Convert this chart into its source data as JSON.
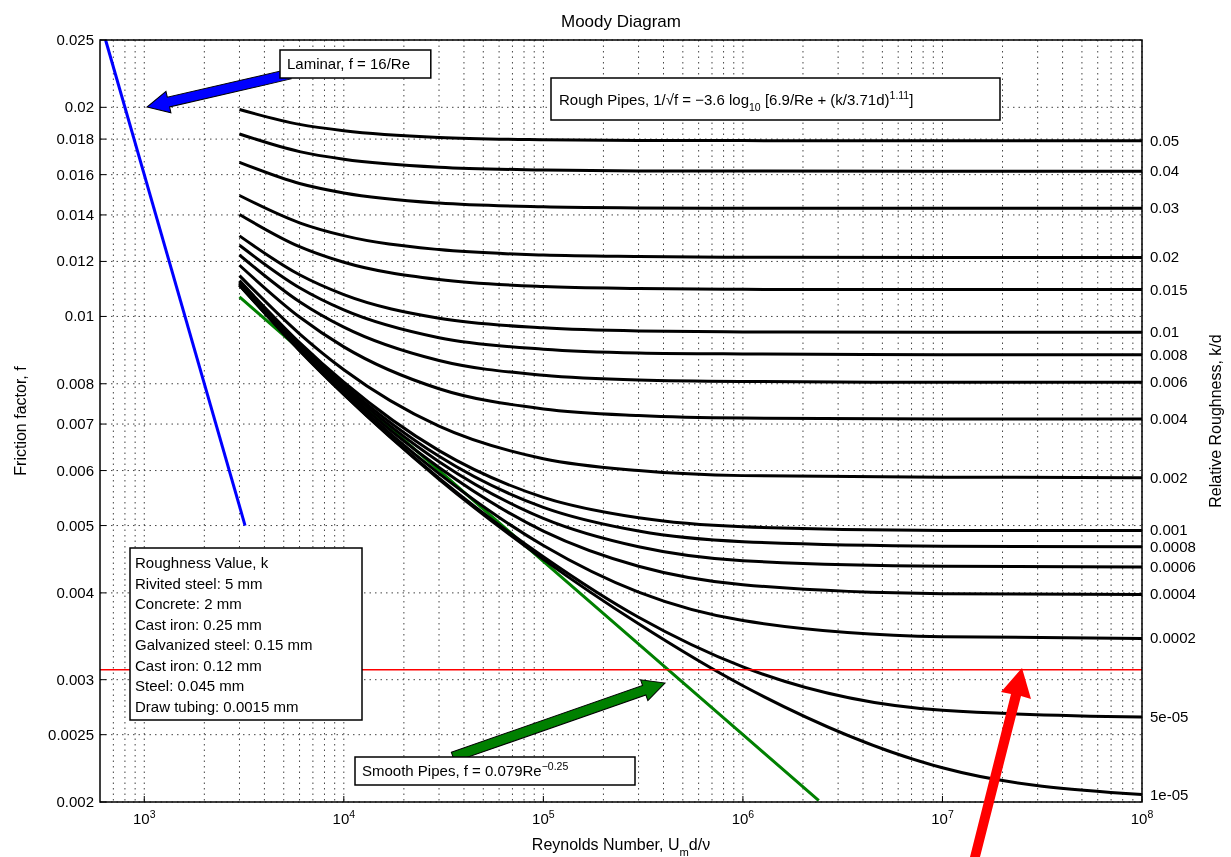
{
  "chart_data": {
    "type": "line",
    "title": "Moody Diagram",
    "xlabel": "Reynolds Number, U$_{m}$d/ν",
    "ylabel": "Friction factor, f",
    "y2label": "Relative Roughness, k/d",
    "log": "xy",
    "grid": true,
    "xlim": [
      600,
      100000000
    ],
    "ylim": [
      0.002,
      0.025
    ],
    "xticks": [
      {
        "value": 1000,
        "label": "10$^{3}$"
      },
      {
        "value": 10000,
        "label": "10$^{4}$"
      },
      {
        "value": 100000,
        "label": "10$^{5}$"
      },
      {
        "value": 1000000,
        "label": "10$^{6}$"
      },
      {
        "value": 10000000,
        "label": "10$^{7}$"
      },
      {
        "value": 100000000,
        "label": "10$^{8}$"
      }
    ],
    "yticks": [
      0.002,
      0.0025,
      0.003,
      0.004,
      0.005,
      0.006,
      0.007,
      0.008,
      0.01,
      0.012,
      0.014,
      0.016,
      0.018,
      0.02,
      0.025
    ],
    "x": [
      3000,
      6000,
      10000,
      30000,
      100000,
      300000,
      1000000,
      10000000,
      100000000
    ],
    "series": [
      {
        "color": "#0000ff",
        "x": [
          640,
          3200
        ],
        "values": [
          0.025,
          0.005
        ]
      },
      {
        "color": "#008000",
        "x": [
          3000,
          10000,
          100000,
          1000000,
          2400000
        ],
        "values": [
          0.01067,
          0.0079,
          0.00444,
          0.0025,
          0.00201
        ]
      },
      {
        "name": "0.05",
        "color": "#000000",
        "values": [
          0.01986,
          0.0189,
          0.01851,
          0.0181,
          0.01796,
          0.01792,
          0.01791,
          0.0179,
          0.0179
        ]
      },
      {
        "name": "0.04",
        "color": "#000000",
        "values": [
          0.01831,
          0.01727,
          0.01684,
          0.0164,
          0.01625,
          0.0162,
          0.01619,
          0.01618,
          0.01618
        ]
      },
      {
        "name": "0.03",
        "color": "#000000",
        "values": [
          0.01667,
          0.01554,
          0.01506,
          0.01456,
          0.01438,
          0.01433,
          0.01431,
          0.01431,
          0.01431
        ]
      },
      {
        "name": "0.02",
        "color": "#000000",
        "values": [
          0.01493,
          0.01364,
          0.01307,
          0.01248,
          0.01226,
          0.0122,
          0.01217,
          0.01216,
          0.01216
        ]
      },
      {
        "name": "0.015",
        "color": "#000000",
        "values": [
          0.01402,
          0.0126,
          0.01197,
          0.0113,
          0.01104,
          0.01097,
          0.01094,
          0.01093,
          0.01093
        ]
      },
      {
        "name": "0.01",
        "color": "#000000",
        "values": [
          0.01306,
          0.01148,
          0.01075,
          0.00994,
          0.00963,
          0.00953,
          0.0095,
          0.00949,
          0.00949
        ]
      },
      {
        "name": "0.008",
        "color": "#000000",
        "values": [
          0.01266,
          0.011,
          0.01022,
          0.00932,
          0.00897,
          0.00886,
          0.00883,
          0.00881,
          0.00881
        ]
      },
      {
        "name": "0.006",
        "color": "#000000",
        "values": [
          0.01226,
          0.0105,
          0.00965,
          0.00864,
          0.00823,
          0.0081,
          0.00806,
          0.00804,
          0.00804
        ]
      },
      {
        "name": "0.004",
        "color": "#000000",
        "values": [
          0.01185,
          0.00998,
          0.00904,
          0.00787,
          0.00736,
          0.0072,
          0.00714,
          0.00712,
          0.00712
        ]
      },
      {
        "name": "0.002",
        "color": "#000000",
        "values": [
          0.01145,
          0.00944,
          0.00838,
          0.00695,
          0.00624,
          0.006,
          0.0059,
          0.00587,
          0.00586
        ]
      },
      {
        "name": "0.001",
        "color": "#000000",
        "values": [
          0.01126,
          0.00917,
          0.00804,
          0.00641,
          0.00549,
          0.00513,
          0.00498,
          0.00492,
          0.00492
        ]
      },
      {
        "name": "0.0008",
        "color": "#000000",
        "values": [
          0.01122,
          0.00912,
          0.00797,
          0.00629,
          0.00531,
          0.00491,
          0.00474,
          0.00467,
          0.00466
        ]
      },
      {
        "name": "0.0006",
        "color": "#000000",
        "values": [
          0.01118,
          0.00907,
          0.00791,
          0.00618,
          0.00512,
          0.00466,
          0.00445,
          0.00437,
          0.00436
        ]
      },
      {
        "name": "0.0004",
        "color": "#000000",
        "values": [
          0.01115,
          0.00902,
          0.00784,
          0.00606,
          0.00491,
          0.00437,
          0.00411,
          0.00399,
          0.00398
        ]
      },
      {
        "name": "0.0002",
        "color": "#000000",
        "values": [
          0.01111,
          0.00897,
          0.00778,
          0.00594,
          0.00468,
          0.00401,
          0.00365,
          0.00346,
          0.00344
        ]
      },
      {
        "name": "5e-05",
        "color": "#000000",
        "values": [
          0.01109,
          0.00894,
          0.00773,
          0.00585,
          0.00451,
          0.00369,
          0.00313,
          0.00271,
          0.00265
        ]
      },
      {
        "name": "1e-05",
        "color": "#000000",
        "values": [
          0.01109,
          0.00893,
          0.00772,
          0.00583,
          0.00447,
          0.00361,
          0.00294,
          0.00224,
          0.00205
        ]
      }
    ],
    "ref_lines": [
      {
        "axis": "y",
        "value": 0.0031,
        "color": "#ff0000"
      }
    ],
    "annotations": [
      "Laminar, f = 16/Re",
      "Rough Pipes, 1/√f = −3.6 log$_{10}$ [6.9/Re + (k/3.71d)$^{1.11}$]",
      "Smooth Pipes, f = 0.079Re$^{−0.25}$",
      "Roughness Value, k",
      "Rivited steel: 5 mm",
      "Concrete: 2 mm",
      "Cast iron: 0.25 mm",
      "Galvanized steel: 0.15 mm",
      "Cast iron: 0.12 mm",
      "Steel: 0.045 mm",
      "Draw tubing: 0.0015 mm"
    ]
  }
}
